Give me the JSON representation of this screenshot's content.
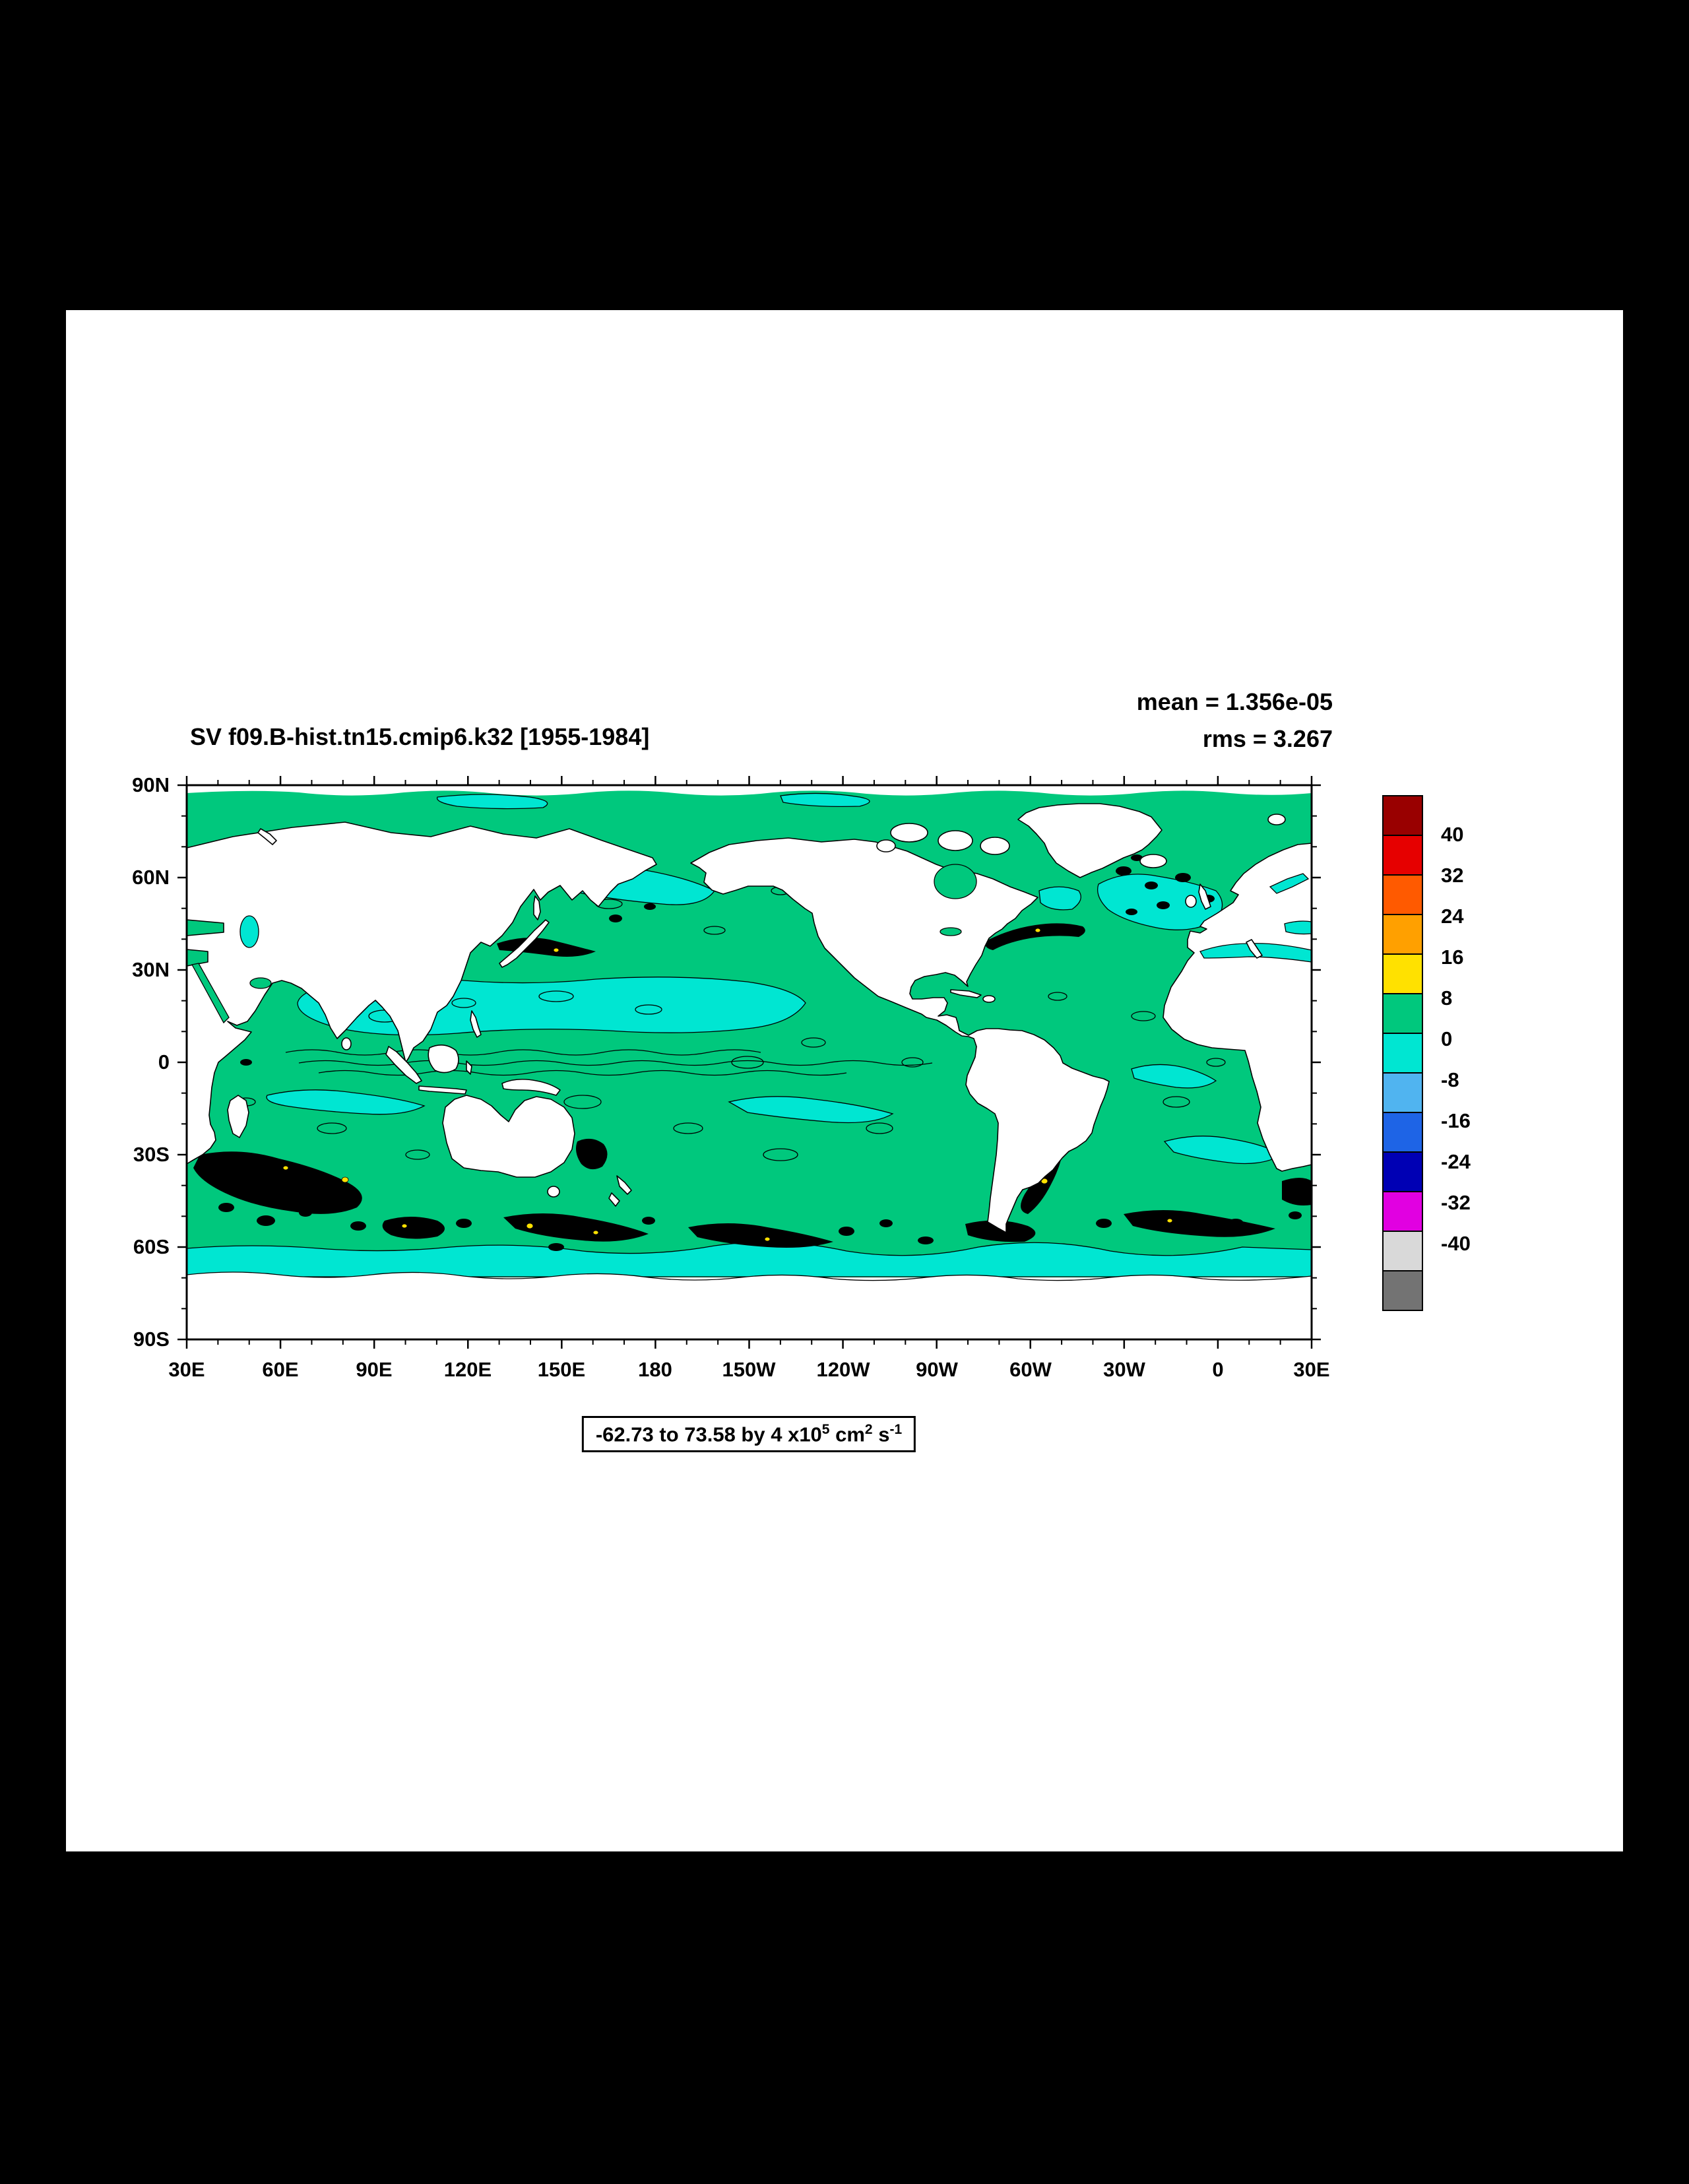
{
  "header": {
    "title": "SV f09.B-hist.tn15.cmip6.k32 [1955-1984]"
  },
  "stats": {
    "mean_label": "mean = 1.356e-05",
    "rms_label": "rms = 3.267"
  },
  "axes": {
    "lat_labels": [
      "90N",
      "60N",
      "30N",
      "0",
      "30S",
      "60S",
      "90S"
    ],
    "lon_labels": [
      "30E",
      "60E",
      "90E",
      "120E",
      "150E",
      "180",
      "150W",
      "120W",
      "90W",
      "60W",
      "30W",
      "0",
      "30E"
    ]
  },
  "colorbar": {
    "labels": [
      "40",
      "32",
      "24",
      "16",
      "8",
      "0",
      "-8",
      "-16",
      "-24",
      "-32",
      "-40"
    ],
    "colors": [
      "#990000",
      "#E60000",
      "#FF5A00",
      "#FFA000",
      "#FFE100",
      "#00C87D",
      "#00E6D2",
      "#50B4F0",
      "#1E64E6",
      "#0000B4",
      "#E100E1",
      "#D9D9D9",
      "#737373"
    ]
  },
  "caption": {
    "t1": "-62.73 to 73.58 by 4 x10",
    "s1": "5",
    "t2": " cm",
    "s2": "2",
    "t3": " s",
    "s3": "-1"
  },
  "chart_data": {
    "type": "heatmap",
    "title": "SV f09.B-hist.tn15.cmip6.k32 [1955-1984]",
    "statistics": {
      "mean": 1.356e-05,
      "rms": 3.267
    },
    "field_min": -62.73,
    "field_max": 73.58,
    "contour_interval": 4,
    "units": "x10^5 cm^2 s^-1",
    "projection": "cylindrical equidistant, longitude 30E around to 30E, latitude 90S to 90N",
    "x_ticks": [
      "30E",
      "60E",
      "90E",
      "120E",
      "150E",
      "180",
      "150W",
      "120W",
      "90W",
      "60W",
      "30W",
      "0",
      "30E"
    ],
    "y_ticks": [
      "90N",
      "60N",
      "30N",
      "0",
      "30S",
      "60S",
      "90S"
    ],
    "colorbar_levels": [
      40,
      32,
      24,
      16,
      8,
      0,
      -8,
      -16,
      -24,
      -32,
      -40
    ],
    "colorbar_colors": [
      "#990000",
      "#E60000",
      "#FF5A00",
      "#FFA000",
      "#FFE100",
      "#00C87D",
      "#00E6D2",
      "#50B4F0",
      "#1E64E6",
      "#0000B4",
      "#E100E1",
      "#D9D9D9",
      "#737373"
    ],
    "legend_position": "right",
    "grid": false,
    "description": "Filled-contour global ocean map: field values near zero (green 0..8, cyan -8..0) over most of the ocean; dense black contour clusters of large +/- values along western boundary currents (Kuroshio, Gulf Stream, Agulhas, Brazil-Malvinas) and the Antarctic Circumpolar Current near 50-60S; land masked in white."
  }
}
